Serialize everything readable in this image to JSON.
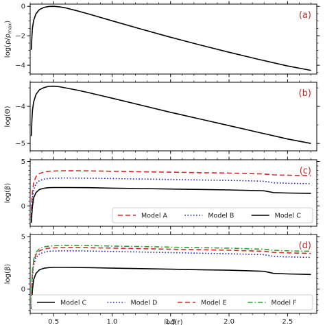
{
  "chart_data": [
    {
      "type": "line",
      "panel_tag": "(a)",
      "ylabel": "log(ρ/ρmax)",
      "ylabel_main": "log(ρ/ρ",
      "ylabel_sub": "max",
      "ylabel_end": ")",
      "xlim": [
        0.3,
        2.75
      ],
      "ylim": [
        -4.6,
        0.15
      ],
      "yticks": [
        0,
        -2,
        -4
      ],
      "ytick_labels": [
        "0",
        "−2",
        "−4"
      ],
      "legend": null,
      "series": [
        {
          "color": "#000000",
          "dash": "solid",
          "x": [
            0.31,
            0.315,
            0.32,
            0.33,
            0.35,
            0.38,
            0.42,
            0.46,
            0.5,
            0.55,
            0.6,
            0.7,
            0.8,
            1.0,
            1.25,
            1.5,
            1.75,
            2.0,
            2.25,
            2.5,
            2.7
          ],
          "y": [
            -2.95,
            -2.0,
            -1.45,
            -0.95,
            -0.5,
            -0.22,
            -0.07,
            -0.01,
            0.0,
            -0.03,
            -0.1,
            -0.3,
            -0.52,
            -0.98,
            -1.55,
            -2.1,
            -2.62,
            -3.12,
            -3.6,
            -4.05,
            -4.35
          ]
        }
      ]
    },
    {
      "type": "line",
      "panel_tag": "(b)",
      "ylabel": "log(Θ)",
      "xlim": [
        0.3,
        2.75
      ],
      "ylim": [
        -5.2,
        -3.35
      ],
      "yticks": [
        -4,
        -5
      ],
      "ytick_labels": [
        "−4",
        "−5"
      ],
      "legend": null,
      "series": [
        {
          "color": "#000000",
          "dash": "solid",
          "x": [
            0.31,
            0.315,
            0.32,
            0.33,
            0.35,
            0.38,
            0.42,
            0.46,
            0.5,
            0.55,
            0.6,
            0.7,
            0.8,
            1.0,
            1.25,
            1.5,
            1.75,
            2.0,
            2.25,
            2.5,
            2.7
          ],
          "y": [
            -4.8,
            -4.35,
            -4.1,
            -3.88,
            -3.68,
            -3.55,
            -3.49,
            -3.46,
            -3.455,
            -3.47,
            -3.5,
            -3.56,
            -3.63,
            -3.78,
            -3.97,
            -4.16,
            -4.34,
            -4.52,
            -4.7,
            -4.88,
            -5.0
          ]
        }
      ]
    },
    {
      "type": "line",
      "panel_tag": "(c)",
      "ylabel": "log(β)",
      "xlim": [
        0.3,
        2.75
      ],
      "ylim": [
        -2.3,
        5.2
      ],
      "yticks": [
        5,
        0
      ],
      "ytick_labels": [
        "5",
        "0"
      ],
      "legend": {
        "position": "lower-right",
        "columns": 3
      },
      "series": [
        {
          "name": "Model A",
          "color": "#d62728",
          "dash": "dashed",
          "x": [
            0.31,
            0.315,
            0.32,
            0.33,
            0.35,
            0.38,
            0.42,
            0.46,
            0.5,
            0.6,
            0.8,
            1.0,
            1.25,
            1.5,
            1.75,
            2.0,
            2.3,
            2.38,
            2.5,
            2.7
          ],
          "y": [
            -1.3,
            0.6,
            1.6,
            2.6,
            3.3,
            3.65,
            3.82,
            3.9,
            3.93,
            3.96,
            3.95,
            3.9,
            3.85,
            3.8,
            3.75,
            3.7,
            3.6,
            3.5,
            3.45,
            3.4
          ]
        },
        {
          "name": "Model B",
          "color": "#1f1fd1",
          "dash": "dotted",
          "x": [
            0.31,
            0.315,
            0.32,
            0.33,
            0.35,
            0.38,
            0.42,
            0.46,
            0.5,
            0.6,
            0.8,
            1.0,
            1.25,
            1.5,
            1.75,
            2.0,
            2.3,
            2.38,
            2.5,
            2.7
          ],
          "y": [
            -1.6,
            0.0,
            0.9,
            1.8,
            2.5,
            2.85,
            3.02,
            3.1,
            3.12,
            3.14,
            3.12,
            3.08,
            3.03,
            2.98,
            2.92,
            2.87,
            2.78,
            2.6,
            2.55,
            2.5
          ]
        },
        {
          "name": "Model C",
          "color": "#000000",
          "dash": "solid",
          "x": [
            0.31,
            0.315,
            0.32,
            0.33,
            0.35,
            0.38,
            0.42,
            0.46,
            0.5,
            0.6,
            0.8,
            1.0,
            1.25,
            1.5,
            1.75,
            2.0,
            2.3,
            2.38,
            2.5,
            2.7
          ],
          "y": [
            -1.9,
            -0.8,
            0.0,
            0.9,
            1.5,
            1.85,
            2.0,
            2.05,
            2.07,
            2.07,
            2.05,
            2.0,
            1.95,
            1.9,
            1.85,
            1.8,
            1.7,
            1.5,
            1.45,
            1.4
          ]
        }
      ]
    },
    {
      "type": "line",
      "panel_tag": "(d)",
      "ylabel": "log(β)",
      "xlabel": "log(r)",
      "xlim": [
        0.3,
        2.75
      ],
      "ylim": [
        -2.3,
        5.2
      ],
      "yticks": [
        5,
        0
      ],
      "ytick_labels": [
        "5",
        "0"
      ],
      "xticks": [
        0.5,
        1.0,
        1.5,
        2.0,
        2.5
      ],
      "xtick_labels": [
        "0.5",
        "1.0",
        "1.5",
        "2.0",
        "2.5"
      ],
      "legend": {
        "position": "bottom",
        "columns": 4
      },
      "series": [
        {
          "name": "Model C",
          "color": "#000000",
          "dash": "solid",
          "x": [
            0.31,
            0.315,
            0.32,
            0.33,
            0.35,
            0.38,
            0.42,
            0.46,
            0.5,
            0.6,
            0.8,
            1.0,
            1.25,
            1.5,
            1.75,
            2.0,
            2.3,
            2.38,
            2.5,
            2.7
          ],
          "y": [
            -1.9,
            -0.8,
            0.0,
            0.9,
            1.5,
            1.85,
            2.0,
            2.05,
            2.07,
            2.07,
            2.05,
            2.0,
            1.95,
            1.9,
            1.85,
            1.8,
            1.7,
            1.5,
            1.45,
            1.4
          ]
        },
        {
          "name": "Model D",
          "color": "#1f1fd1",
          "dash": "dotted",
          "x": [
            0.31,
            0.315,
            0.32,
            0.33,
            0.35,
            0.38,
            0.42,
            0.46,
            0.5,
            0.6,
            0.8,
            1.0,
            1.25,
            1.5,
            1.75,
            2.0,
            2.3,
            2.38,
            2.5,
            2.7
          ],
          "y": [
            -1.5,
            0.3,
            1.3,
            2.3,
            3.0,
            3.35,
            3.52,
            3.6,
            3.63,
            3.65,
            3.63,
            3.58,
            3.53,
            3.48,
            3.42,
            3.37,
            3.28,
            3.12,
            3.07,
            3.02
          ]
        },
        {
          "name": "Model E",
          "color": "#d62728",
          "dash": "dashed",
          "x": [
            0.31,
            0.315,
            0.32,
            0.33,
            0.35,
            0.38,
            0.42,
            0.46,
            0.5,
            0.6,
            0.8,
            1.0,
            1.25,
            1.5,
            1.75,
            2.0,
            2.3,
            2.38,
            2.5,
            2.7
          ],
          "y": [
            -1.3,
            0.6,
            1.6,
            2.6,
            3.3,
            3.65,
            3.82,
            3.9,
            3.93,
            3.96,
            3.95,
            3.9,
            3.85,
            3.8,
            3.75,
            3.7,
            3.6,
            3.5,
            3.45,
            3.4
          ]
        },
        {
          "name": "Model F",
          "color": "#2ca02c",
          "dash": "dashdot",
          "x": [
            0.31,
            0.315,
            0.32,
            0.33,
            0.35,
            0.38,
            0.42,
            0.46,
            0.5,
            0.6,
            0.8,
            1.0,
            1.25,
            1.5,
            1.75,
            2.0,
            2.3,
            2.38,
            2.5,
            2.7
          ],
          "y": [
            -1.2,
            0.8,
            1.8,
            2.8,
            3.5,
            3.85,
            4.02,
            4.1,
            4.13,
            4.16,
            4.15,
            4.1,
            4.05,
            4.0,
            3.95,
            3.9,
            3.8,
            3.7,
            3.65,
            3.6
          ]
        }
      ]
    }
  ]
}
